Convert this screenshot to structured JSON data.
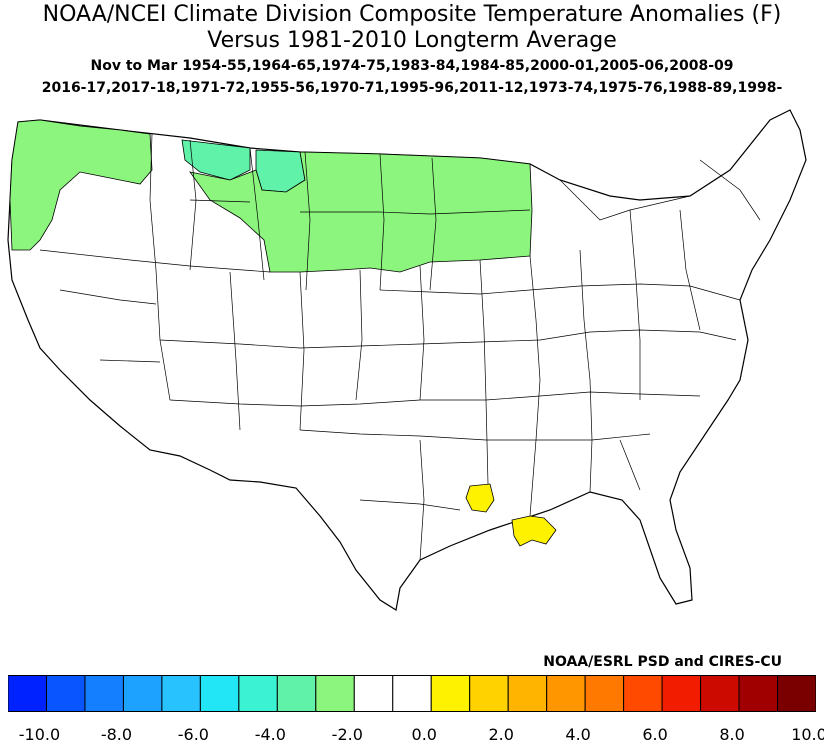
{
  "title_line1": "NOAA/NCEI Climate Division Composite Temperature Anomalies (F)",
  "title_line2": "Versus 1981-2010 Longterm Average",
  "subtitle_line1": "Nov to Mar  1954-55,1964-65,1974-75,1983-84,1984-85,2000-01,2005-06,2008-09",
  "subtitle_line2": "2016-17,2017-18,1971-72,1955-56,1970-71,1995-96,2011-12,1973-74,1975-76,1988-89,1998-",
  "credit": "NOAA/ESRL PSD and CIRES-CU",
  "map": {
    "background": "#ffffff",
    "division_line_color": "#000000",
    "regions": [
      {
        "name": "Pacific Northwest coast & Cascades",
        "value": "-2.0 to -1.0",
        "color": "#8CF57E"
      },
      {
        "name": "Western Montana",
        "value": "-3.0 to -2.0",
        "color": "#5FF2A8"
      },
      {
        "name": "Northeastern Montana",
        "value": "-3.0 to -2.0",
        "color": "#5FF2A8"
      },
      {
        "name": "Eastern Montana, Wyoming north, Dakotas, Minnesota, northern Nebraska",
        "value": "-2.0 to -1.0",
        "color": "#8CF57E"
      },
      {
        "name": "Northern Louisiana division",
        "value": "1.0 to 2.0",
        "color": "#FFF200"
      },
      {
        "name": "Southeastern Louisiana coast",
        "value": "1.0 to 2.0",
        "color": "#FFF200"
      }
    ]
  },
  "colorbar": {
    "colors": [
      "#0022FF",
      "#0955FF",
      "#1480FF",
      "#1EA2FF",
      "#28C2FF",
      "#22E5F5",
      "#3BF2D2",
      "#5FF2A8",
      "#8CF57E",
      "#FFFFFF",
      "#FFFFFF",
      "#FFF200",
      "#FFD200",
      "#FFB400",
      "#FF9600",
      "#FF7800",
      "#FF4A00",
      "#F21D00",
      "#CC0A00",
      "#A00000",
      "#7A0000"
    ],
    "tick_labels": [
      "-10.0",
      "-8.0",
      "-6.0",
      "-4.0",
      "-2.0",
      "0.0",
      "2.0",
      "4.0",
      "6.0",
      "8.0",
      "10.0"
    ]
  }
}
